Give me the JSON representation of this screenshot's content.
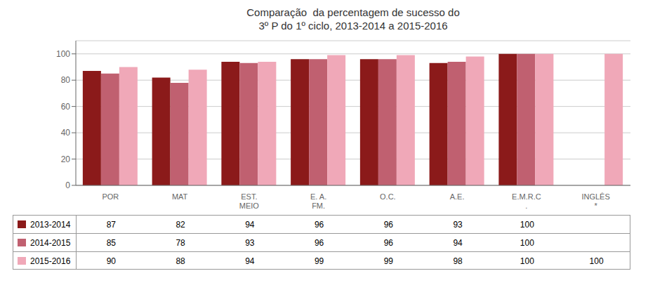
{
  "chart_data": {
    "type": "bar",
    "title": "Comparação  da percentagem de sucesso do\n3º P do 1º ciclo, 2013-2014 a 2015-2016",
    "categories": [
      "POR",
      "MAT",
      "EST.\nMEIO",
      "E. A.\nFM.",
      "O.C.",
      "A.E.",
      "E.M.R.C\n.",
      "INGLÊS\n*"
    ],
    "series": [
      {
        "name": "2013-2014",
        "color": "#8B1A1A",
        "values": [
          87,
          82,
          94,
          96,
          96,
          93,
          100,
          null
        ]
      },
      {
        "name": "2014-2015",
        "color": "#C06070",
        "values": [
          85,
          78,
          93,
          96,
          96,
          94,
          100,
          null
        ]
      },
      {
        "name": "2015-2016",
        "color": "#F0A8B8",
        "values": [
          90,
          88,
          94,
          99,
          99,
          98,
          100,
          100
        ]
      }
    ],
    "ylim": [
      0,
      110
    ],
    "yticks": [
      0,
      20,
      40,
      60,
      80,
      100
    ],
    "grid": true
  }
}
